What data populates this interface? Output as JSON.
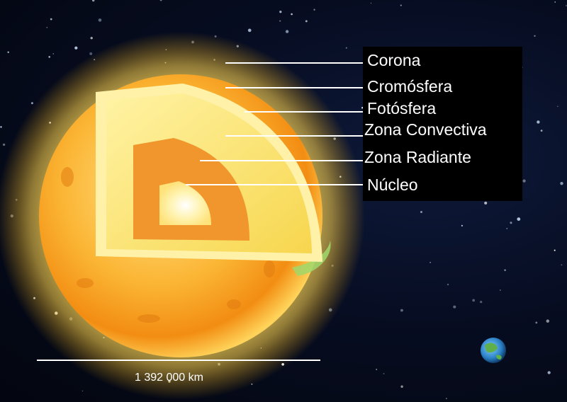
{
  "layers": [
    {
      "key": "corona",
      "label": "Corona"
    },
    {
      "key": "chromosphere",
      "label": "Cromósfera"
    },
    {
      "key": "photosphere",
      "label": "Fotósfera"
    },
    {
      "key": "convective",
      "label": "Zona Convectiva"
    },
    {
      "key": "radiative",
      "label": "Zona Radiante"
    },
    {
      "key": "core",
      "label": "Núcleo"
    }
  ],
  "scale": {
    "label": "1 392 000 km"
  },
  "colors": {
    "space": "#050a18",
    "corona_glow": "#fff6a0",
    "photosphere": "#f6a21a",
    "convective": "#f7e36a",
    "radiative": "#f0962c",
    "core": "#fff7c8",
    "prominence": "#9fd86b"
  }
}
